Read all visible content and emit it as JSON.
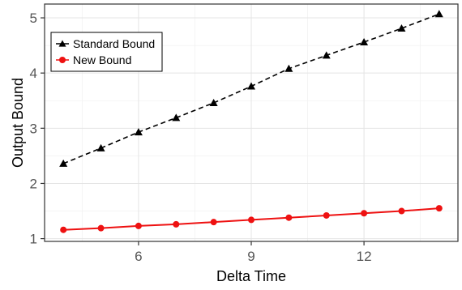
{
  "chart_data": {
    "type": "line",
    "xlabel": "Delta Time",
    "ylabel": "Output Bound",
    "xlim": [
      3.5,
      14.5
    ],
    "ylim": [
      0.95,
      5.25
    ],
    "xticks": [
      6,
      9,
      12
    ],
    "yticks": [
      1,
      2,
      3,
      4,
      5
    ],
    "xtick_labels": [
      "6",
      "9",
      "12"
    ],
    "ytick_labels": [
      "1",
      "2",
      "3",
      "4",
      "5"
    ],
    "grid": true,
    "legend_position": "top-left",
    "x": [
      4,
      5,
      6,
      7,
      8,
      9,
      10,
      11,
      12,
      13,
      14
    ],
    "series": [
      {
        "name": "Standard Bound",
        "values": [
          2.36,
          2.64,
          2.93,
          3.19,
          3.46,
          3.76,
          4.08,
          4.32,
          4.56,
          4.81,
          5.07
        ],
        "color": "#000000",
        "line_style": "dashed",
        "marker": "triangle"
      },
      {
        "name": "New Bound",
        "values": [
          1.16,
          1.19,
          1.23,
          1.26,
          1.3,
          1.34,
          1.38,
          1.42,
          1.46,
          1.5,
          1.55
        ],
        "color": "#ee1111",
        "line_style": "solid",
        "marker": "circle"
      }
    ]
  }
}
